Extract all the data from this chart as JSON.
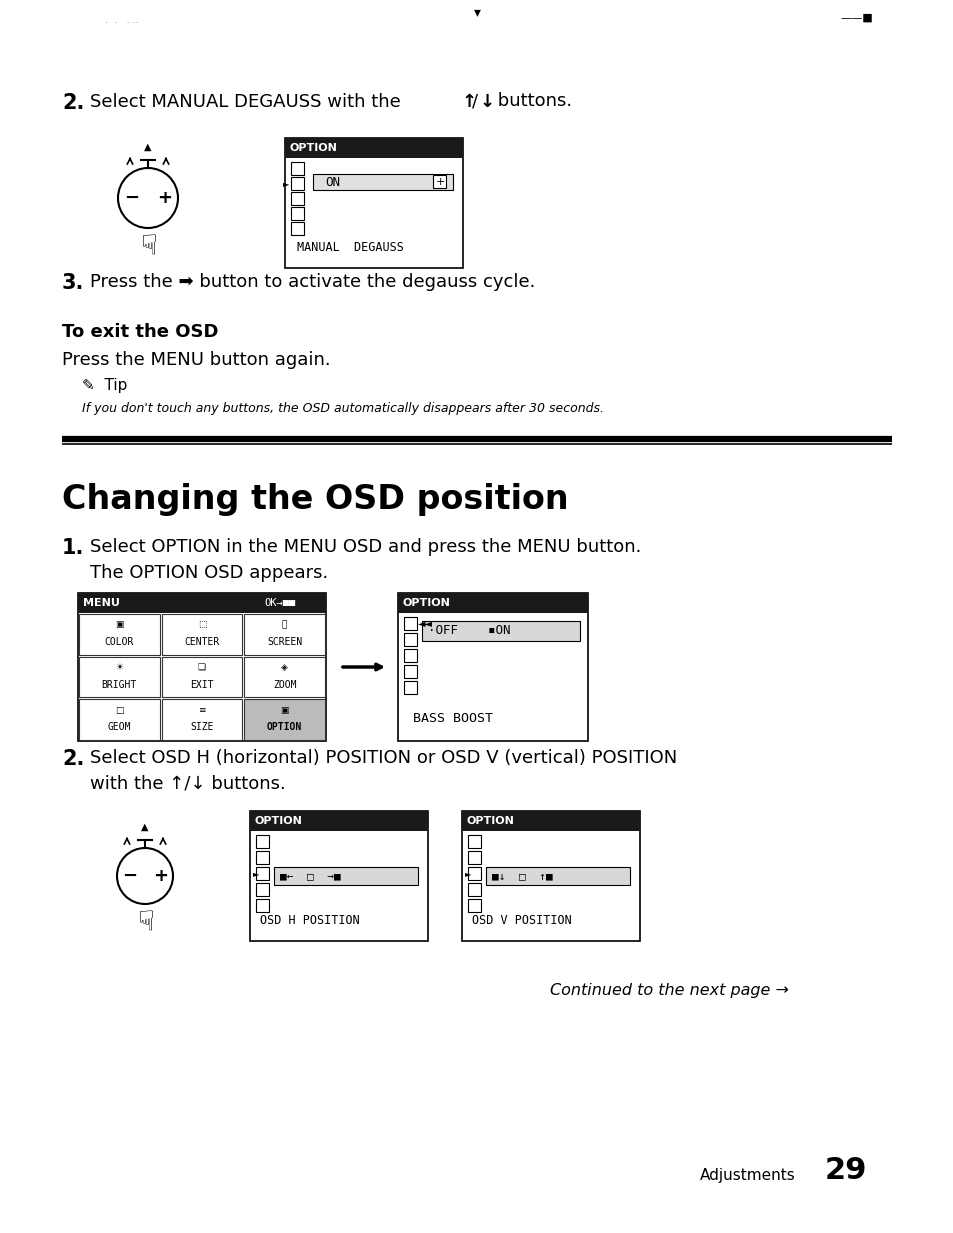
{
  "bg_color": "#ffffff",
  "page_width": 9.54,
  "page_height": 12.33,
  "section_title": "Changing the OSD position",
  "continued": "Continued to the next page →",
  "footer": "Adjustments",
  "page_num": "29"
}
